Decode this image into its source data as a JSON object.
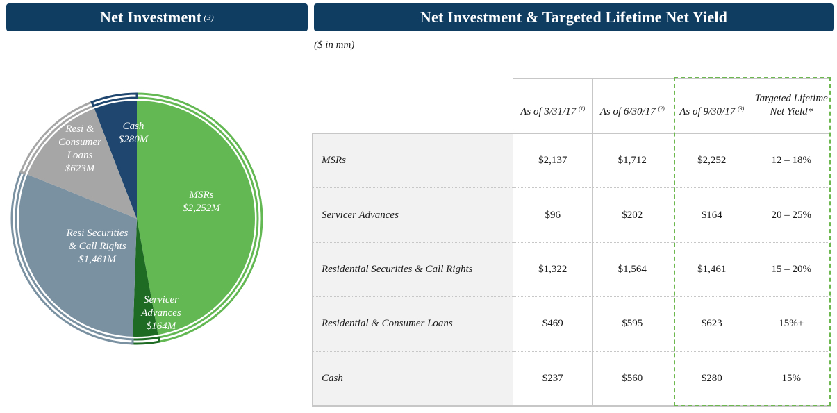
{
  "left_panel": {
    "title": "Net Investment",
    "title_note": "(3)"
  },
  "right_panel": {
    "title": "Net Investment & Targeted Lifetime Net Yield",
    "units": "($ in mm)"
  },
  "chart_data": [
    {
      "type": "pie",
      "title": "Net Investment",
      "slices": [
        {
          "name": "MSRs",
          "value": 2252,
          "label_lines": [
            "MSRs",
            "$2,252M"
          ],
          "color": "#64b854",
          "outer_ring_color": "#64b854"
        },
        {
          "name": "Servicer Advances",
          "value": 164,
          "label_lines": [
            "Servicer",
            "Advances",
            "$164M"
          ],
          "color": "#1e6b24",
          "outer_ring_color": "#1e6b24"
        },
        {
          "name": "Resi Securities & Call Rights",
          "value": 1461,
          "label_lines": [
            "Resi Securities",
            "& Call Rights",
            "$1,461M"
          ],
          "color": "#7a91a2",
          "outer_ring_color": "#7a91a2"
        },
        {
          "name": "Resi & Consumer Loans",
          "value": 623,
          "label_lines": [
            "Resi &",
            "Consumer",
            "Loans",
            "$623M"
          ],
          "color": "#a6a6a6",
          "outer_ring_color": "#a6a6a6"
        },
        {
          "name": "Cash",
          "value": 280,
          "label_lines": [
            "Cash",
            "$280M"
          ],
          "color": "#1e466e",
          "outer_ring_color": "#1e466e"
        }
      ]
    },
    {
      "type": "table",
      "columns": [
        {
          "label": "As of 3/31/17",
          "note": "(1)"
        },
        {
          "label": "As of 6/30/17",
          "note": "(2)"
        },
        {
          "label": "As of 9/30/17",
          "note": "(3)"
        },
        {
          "label": "Targeted Lifetime Net Yield*",
          "note": ""
        }
      ],
      "rows": [
        {
          "label": "MSRs",
          "values": [
            "$2,137",
            "$1,712",
            "$2,252",
            "12 – 18%"
          ]
        },
        {
          "label": "Servicer Advances",
          "values": [
            "$96",
            "$202",
            "$164",
            "20 – 25%"
          ]
        },
        {
          "label": "Residential Securities & Call Rights",
          "values": [
            "$1,322",
            "$1,564",
            "$1,461",
            "15 – 20%"
          ]
        },
        {
          "label": "Residential & Consumer Loans",
          "values": [
            "$469",
            "$595",
            "$623",
            "15%+"
          ]
        },
        {
          "label": "Cash",
          "values": [
            "$237",
            "$560",
            "$280",
            "15%"
          ]
        }
      ],
      "highlighted_column": "As of 9/30/17",
      "highlight_color": "#6db84f"
    }
  ]
}
